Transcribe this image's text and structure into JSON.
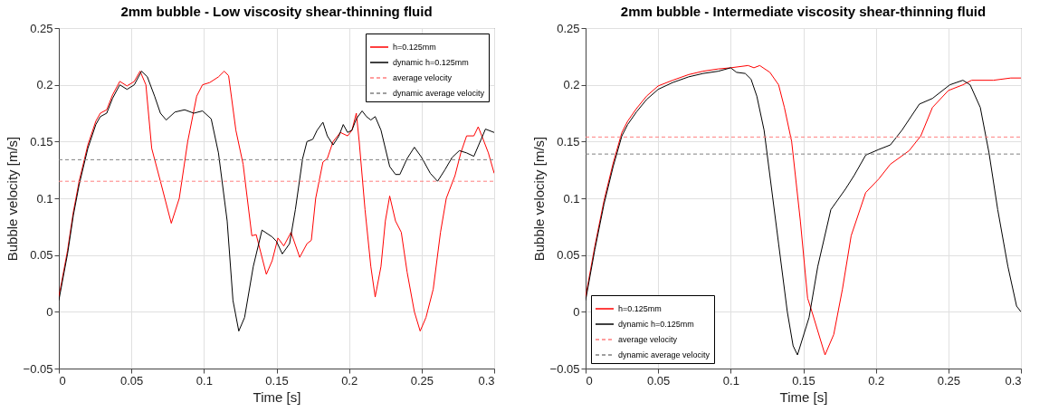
{
  "chart_data": [
    {
      "type": "line",
      "title": "2mm bubble - Low viscosity shear-thinning fluid",
      "xlabel": "Time [s]",
      "ylabel": "Bubble velocity [m/s]",
      "xlim": [
        0,
        0.3
      ],
      "xticks": [
        0,
        0.05,
        0.1,
        0.15,
        0.2,
        0.25,
        0.3
      ],
      "ylim": [
        -0.05,
        0.25
      ],
      "yticks": [
        -0.05,
        0,
        0.05,
        0.1,
        0.15,
        0.2,
        0.25
      ],
      "grid": true,
      "legend": "top right",
      "line_style": "solid",
      "marker": "none",
      "series": [
        {
          "name": "h=0.125mm",
          "color": "#ff0000",
          "x": [
            0,
            0.006,
            0.01,
            0.014,
            0.02,
            0.0255,
            0.0286,
            0.033,
            0.037,
            0.042,
            0.047,
            0.052,
            0.056,
            0.06,
            0.064,
            0.07,
            0.0775,
            0.083,
            0.0888,
            0.095,
            0.099,
            0.104,
            0.11,
            0.114,
            0.117,
            0.122,
            0.127,
            0.133,
            0.136,
            0.143,
            0.147,
            0.151,
            0.155,
            0.16,
            0.166,
            0.171,
            0.174,
            0.177,
            0.182,
            0.185,
            0.189,
            0.194,
            0.199,
            0.202,
            0.205,
            0.207,
            0.211,
            0.215,
            0.218,
            0.222,
            0.225,
            0.228,
            0.232,
            0.236,
            0.24,
            0.245,
            0.249,
            0.253,
            0.258,
            0.263,
            0.267,
            0.273,
            0.277,
            0.281,
            0.286,
            0.289,
            0.293,
            0.296,
            0.3
          ],
          "values": [
            0.013,
            0.054,
            0.088,
            0.115,
            0.147,
            0.168,
            0.175,
            0.178,
            0.191,
            0.203,
            0.199,
            0.203,
            0.212,
            0.2,
            0.144,
            0.115,
            0.078,
            0.1,
            0.15,
            0.19,
            0.2,
            0.202,
            0.207,
            0.212,
            0.208,
            0.16,
            0.13,
            0.067,
            0.068,
            0.033,
            0.045,
            0.065,
            0.058,
            0.07,
            0.048,
            0.06,
            0.063,
            0.1,
            0.132,
            0.135,
            0.15,
            0.158,
            0.155,
            0.16,
            0.175,
            0.15,
            0.09,
            0.04,
            0.013,
            0.04,
            0.08,
            0.102,
            0.08,
            0.07,
            0.035,
            0.0,
            -0.017,
            -0.005,
            0.02,
            0.07,
            0.1,
            0.12,
            0.14,
            0.155,
            0.155,
            0.163,
            0.15,
            0.14,
            0.122
          ]
        },
        {
          "name": "dynamic h=0.125mm",
          "color": "#000000",
          "x": [
            0,
            0.006,
            0.01,
            0.014,
            0.02,
            0.0255,
            0.0286,
            0.033,
            0.037,
            0.042,
            0.047,
            0.052,
            0.057,
            0.061,
            0.066,
            0.07,
            0.074,
            0.08,
            0.0867,
            0.093,
            0.099,
            0.105,
            0.11,
            0.116,
            0.12,
            0.124,
            0.128,
            0.134,
            0.14,
            0.147,
            0.15,
            0.154,
            0.159,
            0.163,
            0.168,
            0.171,
            0.175,
            0.178,
            0.182,
            0.185,
            0.189,
            0.193,
            0.196,
            0.199,
            0.202,
            0.205,
            0.209,
            0.212,
            0.215,
            0.218,
            0.222,
            0.228,
            0.232,
            0.235,
            0.24,
            0.245,
            0.25,
            0.256,
            0.261,
            0.266,
            0.271,
            0.276,
            0.281,
            0.286,
            0.291,
            0.294,
            0.3
          ],
          "values": [
            0.01,
            0.051,
            0.085,
            0.112,
            0.144,
            0.165,
            0.172,
            0.175,
            0.188,
            0.2,
            0.196,
            0.2,
            0.212,
            0.207,
            0.19,
            0.175,
            0.169,
            0.176,
            0.178,
            0.175,
            0.177,
            0.17,
            0.14,
            0.08,
            0.01,
            -0.017,
            -0.005,
            0.04,
            0.072,
            0.066,
            0.062,
            0.051,
            0.06,
            0.09,
            0.135,
            0.15,
            0.152,
            0.16,
            0.167,
            0.155,
            0.147,
            0.155,
            0.165,
            0.158,
            0.16,
            0.17,
            0.177,
            0.172,
            0.169,
            0.172,
            0.16,
            0.128,
            0.121,
            0.121,
            0.135,
            0.145,
            0.136,
            0.122,
            0.115,
            0.125,
            0.136,
            0.142,
            0.14,
            0.137,
            0.152,
            0.161,
            0.158
          ]
        }
      ],
      "ref_lines": [
        {
          "axis": "y",
          "value": 0.115,
          "label": "average velocity",
          "color": "#ff7f7f",
          "line_style": "dashed"
        },
        {
          "axis": "y",
          "value": 0.134,
          "label": "dynamic average velocity",
          "color": "#808080",
          "line_style": "dashed"
        }
      ]
    },
    {
      "type": "line",
      "title": "2mm bubble - Intermediate viscosity shear-thinning fluid",
      "xlabel": "Time [s]",
      "ylabel": "Bubble velocity [m/s]",
      "xlim": [
        0,
        0.3
      ],
      "xticks": [
        0,
        0.05,
        0.1,
        0.15,
        0.2,
        0.25,
        0.3
      ],
      "ylim": [
        -0.05,
        0.25
      ],
      "yticks": [
        -0.05,
        0,
        0.05,
        0.1,
        0.15,
        0.2,
        0.25
      ],
      "grid": true,
      "legend": "bottom left",
      "line_style": "solid",
      "marker": "none",
      "series": [
        {
          "name": "h=0.125mm",
          "color": "#ff0000",
          "x": [
            0,
            0.0064,
            0.0127,
            0.019,
            0.025,
            0.029,
            0.035,
            0.042,
            0.05,
            0.06,
            0.071,
            0.081,
            0.0915,
            0.1,
            0.112,
            0.116,
            0.12,
            0.127,
            0.133,
            0.137,
            0.142,
            0.148,
            0.153,
            0.156,
            0.165,
            0.171,
            0.177,
            0.183,
            0.193,
            0.202,
            0.21,
            0.223,
            0.231,
            0.239,
            0.25,
            0.26,
            0.266,
            0.281,
            0.293,
            0.3
          ],
          "values": [
            0.013,
            0.058,
            0.098,
            0.131,
            0.158,
            0.168,
            0.179,
            0.19,
            0.199,
            0.204,
            0.209,
            0.212,
            0.214,
            0.215,
            0.217,
            0.215,
            0.217,
            0.211,
            0.2,
            0.18,
            0.15,
            0.08,
            0.012,
            0.0,
            -0.038,
            -0.02,
            0.02,
            0.067,
            0.105,
            0.117,
            0.13,
            0.142,
            0.155,
            0.18,
            0.195,
            0.2,
            0.204,
            0.204,
            0.206,
            0.206
          ]
        },
        {
          "name": "dynamic h=0.125mm",
          "color": "#000000",
          "x": [
            0,
            0.0064,
            0.0127,
            0.019,
            0.025,
            0.029,
            0.035,
            0.042,
            0.05,
            0.06,
            0.071,
            0.081,
            0.0915,
            0.1,
            0.104,
            0.11,
            0.114,
            0.118,
            0.123,
            0.127,
            0.133,
            0.139,
            0.143,
            0.146,
            0.154,
            0.16,
            0.169,
            0.179,
            0.185,
            0.193,
            0.202,
            0.21,
            0.218,
            0.23,
            0.239,
            0.251,
            0.26,
            0.265,
            0.272,
            0.278,
            0.284,
            0.291,
            0.297,
            0.3
          ],
          "values": [
            0.01,
            0.055,
            0.095,
            0.128,
            0.155,
            0.165,
            0.176,
            0.187,
            0.196,
            0.202,
            0.207,
            0.21,
            0.212,
            0.215,
            0.211,
            0.21,
            0.205,
            0.19,
            0.16,
            0.12,
            0.06,
            0.0,
            -0.03,
            -0.038,
            -0.005,
            0.04,
            0.09,
            0.108,
            0.12,
            0.138,
            0.143,
            0.147,
            0.16,
            0.183,
            0.188,
            0.2,
            0.204,
            0.2,
            0.18,
            0.14,
            0.09,
            0.04,
            0.005,
            0.0
          ]
        }
      ],
      "ref_lines": [
        {
          "axis": "y",
          "value": 0.154,
          "label": "average velocity",
          "color": "#ff7f7f",
          "line_style": "dashed"
        },
        {
          "axis": "y",
          "value": 0.139,
          "label": "dynamic average velocity",
          "color": "#808080",
          "line_style": "dashed"
        }
      ]
    }
  ]
}
